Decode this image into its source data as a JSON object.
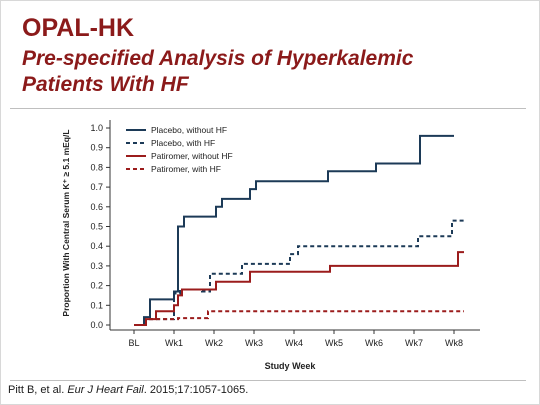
{
  "slide": {
    "title": "OPAL-HK",
    "subtitle": "Pre-specified Analysis of Hyperkalemic Patients With HF",
    "citation_pre": "Pitt B, et al. ",
    "citation_journal": "Eur J Heart Fail",
    "citation_post": ". 2015;17:1057-1065."
  },
  "chart_data": {
    "type": "line",
    "step": true,
    "title": "",
    "xlabel": "Study Week",
    "ylabel": "Proportion With Central Serum K⁺ ≥ 5.1 mEq/L",
    "categories": [
      "BL",
      "Wk1",
      "Wk2",
      "Wk3",
      "Wk4",
      "Wk5",
      "Wk6",
      "Wk7",
      "Wk8"
    ],
    "xlim": [
      0,
      8.6
    ],
    "ylim": [
      0,
      1.0
    ],
    "yticks": [
      "0.0",
      "0.1",
      "0.2",
      "0.3",
      "0.4",
      "0.5",
      "0.6",
      "0.7",
      "0.8",
      "0.9",
      "1.0"
    ],
    "legend_position": "top-left",
    "grid": false,
    "series": [
      {
        "name": "Placebo, without HF",
        "color": "#1c3a57",
        "dash": "solid",
        "points": [
          [
            0,
            0
          ],
          [
            0.25,
            0
          ],
          [
            0.25,
            0.04
          ],
          [
            0.4,
            0.04
          ],
          [
            0.4,
            0.13
          ],
          [
            1.0,
            0.13
          ],
          [
            1.0,
            0.17
          ],
          [
            1.1,
            0.17
          ],
          [
            1.1,
            0.5
          ],
          [
            1.25,
            0.5
          ],
          [
            1.25,
            0.55
          ],
          [
            2.05,
            0.55
          ],
          [
            2.05,
            0.6
          ],
          [
            2.2,
            0.6
          ],
          [
            2.2,
            0.64
          ],
          [
            2.9,
            0.64
          ],
          [
            2.9,
            0.69
          ],
          [
            3.05,
            0.69
          ],
          [
            3.05,
            0.73
          ],
          [
            4.85,
            0.73
          ],
          [
            4.85,
            0.78
          ],
          [
            6.05,
            0.78
          ],
          [
            6.05,
            0.82
          ],
          [
            7.15,
            0.82
          ],
          [
            7.15,
            0.96
          ],
          [
            8.0,
            0.96
          ]
        ]
      },
      {
        "name": "Placebo, with HF",
        "color": "#1c3a57",
        "dash": "dash",
        "points": [
          [
            0,
            0
          ],
          [
            0.3,
            0
          ],
          [
            0.3,
            0.03
          ],
          [
            1.0,
            0.03
          ],
          [
            1.0,
            0.16
          ],
          [
            1.15,
            0.16
          ],
          [
            1.15,
            0.18
          ],
          [
            1.7,
            0.18
          ],
          [
            1.7,
            0.17
          ],
          [
            1.9,
            0.17
          ],
          [
            1.9,
            0.26
          ],
          [
            2.7,
            0.26
          ],
          [
            2.7,
            0.31
          ],
          [
            3.9,
            0.31
          ],
          [
            3.9,
            0.36
          ],
          [
            4.1,
            0.36
          ],
          [
            4.1,
            0.4
          ],
          [
            7.1,
            0.4
          ],
          [
            7.1,
            0.45
          ],
          [
            7.95,
            0.45
          ],
          [
            7.95,
            0.53
          ],
          [
            8.25,
            0.53
          ]
        ]
      },
      {
        "name": "Patiromer, without HF",
        "color": "#9b1c1c",
        "dash": "solid",
        "points": [
          [
            0,
            0
          ],
          [
            0.3,
            0
          ],
          [
            0.3,
            0.03
          ],
          [
            0.55,
            0.03
          ],
          [
            0.55,
            0.07
          ],
          [
            1.0,
            0.07
          ],
          [
            1.0,
            0.1
          ],
          [
            1.1,
            0.1
          ],
          [
            1.1,
            0.15
          ],
          [
            1.2,
            0.15
          ],
          [
            1.2,
            0.18
          ],
          [
            2.05,
            0.18
          ],
          [
            2.05,
            0.22
          ],
          [
            2.9,
            0.22
          ],
          [
            2.9,
            0.27
          ],
          [
            4.9,
            0.27
          ],
          [
            4.9,
            0.3
          ],
          [
            8.1,
            0.3
          ],
          [
            8.1,
            0.37
          ],
          [
            8.25,
            0.37
          ]
        ]
      },
      {
        "name": "Patiromer, with HF",
        "color": "#9b1c1c",
        "dash": "dash",
        "points": [
          [
            0,
            0
          ],
          [
            0.3,
            0
          ],
          [
            0.3,
            0.03
          ],
          [
            1.1,
            0.03
          ],
          [
            1.1,
            0.035
          ],
          [
            1.85,
            0.035
          ],
          [
            1.85,
            0.07
          ],
          [
            8.25,
            0.07
          ]
        ]
      }
    ]
  }
}
